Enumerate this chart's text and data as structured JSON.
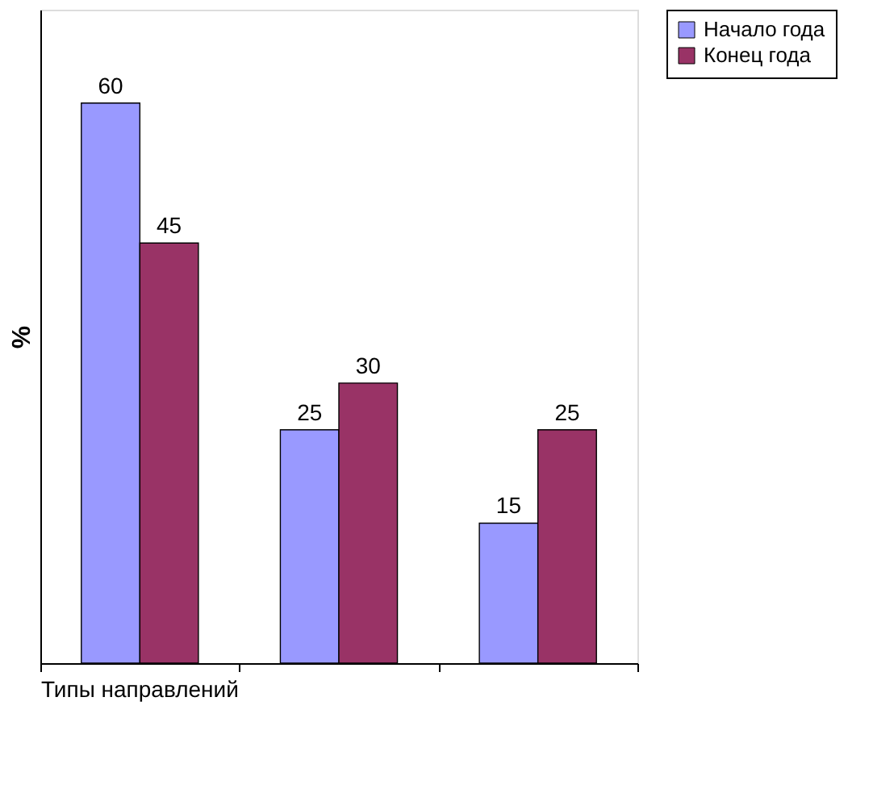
{
  "chart_data": {
    "type": "bar",
    "xlabel": "Типы направлений",
    "ylabel": "%",
    "categories": [
      null,
      null,
      null
    ],
    "series": [
      {
        "name": "Начало года",
        "color": "#9999ff",
        "values": [
          60,
          25,
          15
        ]
      },
      {
        "name": "Конец года",
        "color": "#993366",
        "values": [
          45,
          30,
          25
        ]
      }
    ],
    "ylim": [
      0,
      70
    ],
    "tick_labels": false,
    "grid": false,
    "legend": "right",
    "data_labels": true
  }
}
